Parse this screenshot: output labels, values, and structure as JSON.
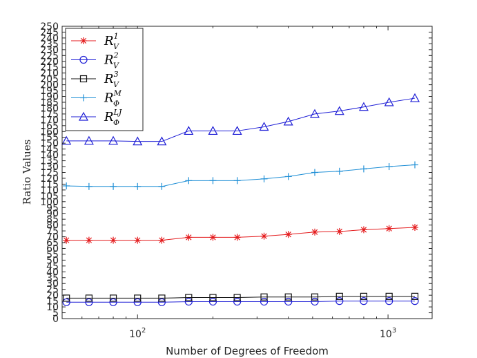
{
  "chart_data": {
    "type": "line",
    "title": "",
    "xlabel": "Number of Degrees of Freedom",
    "ylabel": "Ratio Values",
    "xscale": "log",
    "xlim": [
      50,
      1500
    ],
    "ylim": [
      0,
      250
    ],
    "yticks": [
      0,
      5,
      10,
      15,
      20,
      25,
      30,
      35,
      40,
      45,
      50,
      55,
      60,
      65,
      70,
      75,
      80,
      85,
      90,
      95,
      100,
      105,
      110,
      115,
      120,
      125,
      130,
      135,
      140,
      145,
      150,
      155,
      160,
      165,
      170,
      175,
      180,
      185,
      190,
      195,
      200,
      205,
      210,
      215,
      220,
      225,
      230,
      235,
      240,
      245,
      250
    ],
    "xticks": [
      {
        "value": 100,
        "base": "10",
        "exp": "2"
      },
      {
        "value": 1000,
        "base": "10",
        "exp": "3"
      }
    ],
    "legend_position": "top-left",
    "x": [
      52,
      64,
      80,
      100,
      125,
      160,
      200,
      250,
      320,
      400,
      510,
      640,
      800,
      1010,
      1280
    ],
    "series": [
      {
        "name": "R_V^1",
        "base": "R",
        "sup": "1",
        "sub": "V",
        "color": "#e41a1c",
        "marker": "star",
        "values": [
          67,
          67,
          67,
          67,
          67,
          69.5,
          69.5,
          69.5,
          70.5,
          72,
          74,
          74.5,
          76,
          77,
          78
        ]
      },
      {
        "name": "R_V^2",
        "base": "R",
        "sup": "2",
        "sub": "V",
        "color": "#1f1fd6",
        "marker": "circle",
        "values": [
          14,
          14,
          14,
          14,
          14,
          14.5,
          14.5,
          14.5,
          14.5,
          14.5,
          14.5,
          15,
          15,
          15,
          15
        ]
      },
      {
        "name": "R_V^3",
        "base": "R",
        "sup": "3",
        "sub": "V",
        "color": "#111111",
        "marker": "square",
        "values": [
          17.5,
          17.5,
          17.5,
          17.5,
          17.5,
          18,
          18,
          18,
          18.5,
          18.5,
          18.5,
          19,
          19,
          19,
          19
        ]
      },
      {
        "name": "R_Φ^M",
        "base": "R",
        "sup": "M",
        "sub": "Φ",
        "color": "#1f8fd6",
        "marker": "plus",
        "values": [
          113.5,
          113,
          113,
          113,
          113,
          118,
          118,
          118,
          119.5,
          121.5,
          125,
          126,
          128,
          130,
          131.5
        ]
      },
      {
        "name": "R_Φ^LJ",
        "base": "R",
        "sup": "LJ",
        "sub": "Φ",
        "color": "#1f1fd6",
        "marker": "triangle",
        "values": [
          152,
          152,
          152,
          151.5,
          151.5,
          160.5,
          160.5,
          160.5,
          164,
          168.5,
          175,
          177.5,
          181,
          185,
          188.5
        ]
      }
    ]
  }
}
